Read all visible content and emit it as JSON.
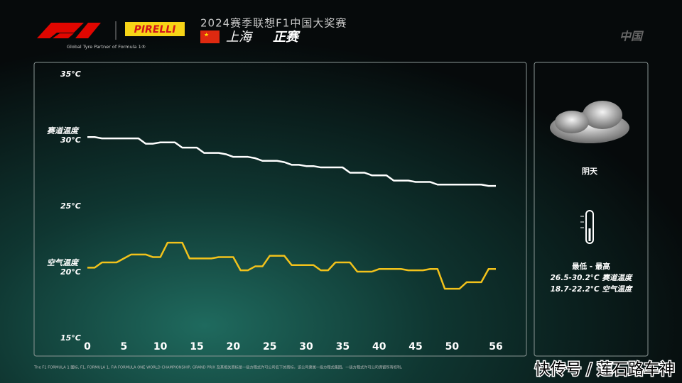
{
  "header": {
    "pirelli": "PIRELLI",
    "partner": "Global Tyre Partner of Formula 1®",
    "event": "2024赛季联想F1中国大奖赛",
    "city": "上海",
    "session": "正赛",
    "country": "中国"
  },
  "weather": {
    "condition": "阴天",
    "range_title": "最低 - 最高",
    "track_range": "26.5-30.2°C 赛道温度",
    "air_range": "18.7-22.2°C 空气温度"
  },
  "footer": "The F1 FORMULA 1 图标, F1, FORMULA 1, FIA FORMULA ONE WORLD CHAMPIONSHIP, GRAND PRIX 及其相关商标是一级方程式许可公司名下的商标，该公司隶属一级方程式集团。一级方程式许可公司保留所有权利。",
  "watermark": "快传号 / 莲石路车神",
  "chart_data": {
    "type": "line",
    "x": [
      0,
      1,
      2,
      3,
      4,
      5,
      6,
      7,
      8,
      9,
      10,
      11,
      12,
      13,
      14,
      15,
      16,
      17,
      18,
      19,
      20,
      21,
      22,
      23,
      24,
      25,
      26,
      27,
      28,
      29,
      30,
      31,
      32,
      33,
      34,
      35,
      36,
      37,
      38,
      39,
      40,
      41,
      42,
      43,
      44,
      45,
      46,
      47,
      48,
      49,
      50,
      51,
      52,
      53,
      54,
      55,
      56
    ],
    "series": [
      {
        "name": "赛道温度",
        "color": "#ffffff",
        "values": [
          30.2,
          30.2,
          30.1,
          30.1,
          30.1,
          30.1,
          30.1,
          30.1,
          29.7,
          29.7,
          29.8,
          29.8,
          29.8,
          29.4,
          29.4,
          29.4,
          29.0,
          29.0,
          29.0,
          28.9,
          28.7,
          28.7,
          28.7,
          28.6,
          28.4,
          28.4,
          28.4,
          28.3,
          28.1,
          28.1,
          28.0,
          28.0,
          27.9,
          27.9,
          27.9,
          27.9,
          27.5,
          27.5,
          27.5,
          27.3,
          27.3,
          27.3,
          26.9,
          26.9,
          26.9,
          26.8,
          26.8,
          26.8,
          26.6,
          26.6,
          26.6,
          26.6,
          26.6,
          26.6,
          26.6,
          26.5,
          26.5
        ]
      },
      {
        "name": "空气温度",
        "color": "#f2c21b",
        "values": [
          20.3,
          20.3,
          20.7,
          20.7,
          20.7,
          21.0,
          21.3,
          21.3,
          21.3,
          21.1,
          21.1,
          22.2,
          22.2,
          22.2,
          21.0,
          21.0,
          21.0,
          21.0,
          21.1,
          21.1,
          21.1,
          20.1,
          20.1,
          20.4,
          20.4,
          21.2,
          21.2,
          21.2,
          20.5,
          20.5,
          20.5,
          20.5,
          20.1,
          20.1,
          20.7,
          20.7,
          20.7,
          20.0,
          20.0,
          20.0,
          20.2,
          20.2,
          20.2,
          20.2,
          20.1,
          20.1,
          20.1,
          20.2,
          20.2,
          18.7,
          18.7,
          18.7,
          19.2,
          19.2,
          19.2,
          20.2,
          20.2
        ]
      }
    ],
    "xlim": [
      0,
      56
    ],
    "xticks": [
      0,
      5,
      10,
      15,
      20,
      25,
      30,
      35,
      40,
      45,
      50,
      56
    ],
    "ylim": [
      15,
      35
    ],
    "yticks": [
      {
        "value": 15,
        "label": "15°C"
      },
      {
        "value": 20,
        "label": "20°C"
      },
      {
        "value": 25,
        "label": "25°C"
      },
      {
        "value": 30,
        "label": "30°C"
      },
      {
        "value": 35,
        "label": "35°C"
      }
    ],
    "grid": false
  }
}
